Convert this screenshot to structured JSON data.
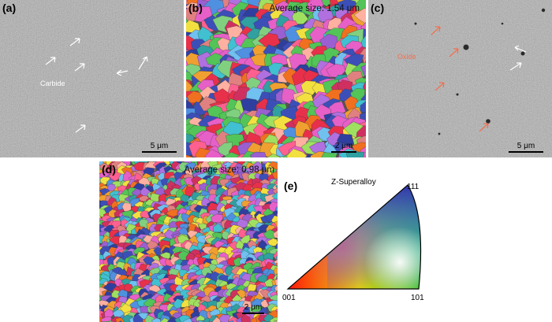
{
  "panels": {
    "a": {
      "label": "(a)",
      "scale_bar": "5 μm",
      "annotation": "Carbide"
    },
    "b": {
      "label": "(b)",
      "average_size": "Average size: 1.54 μm",
      "scale_bar": "2 μm"
    },
    "c": {
      "label": "(c)",
      "scale_bar": "5 μm",
      "annotation": "Oxide"
    },
    "d": {
      "label": "(d)",
      "average_size": "Average size: 0.98 μm",
      "scale_bar": "2 μm"
    },
    "e": {
      "label": "(e)",
      "title": "Z-Superalloy",
      "corner_111": "111",
      "corner_001": "001",
      "corner_101": "101"
    }
  },
  "colors": {
    "oxide_label": "#f07050",
    "arrow_outline": "#ffffff",
    "ipf_red": "#ff0000",
    "ipf_green": "#00c000",
    "ipf_blue": "#2020d0"
  }
}
